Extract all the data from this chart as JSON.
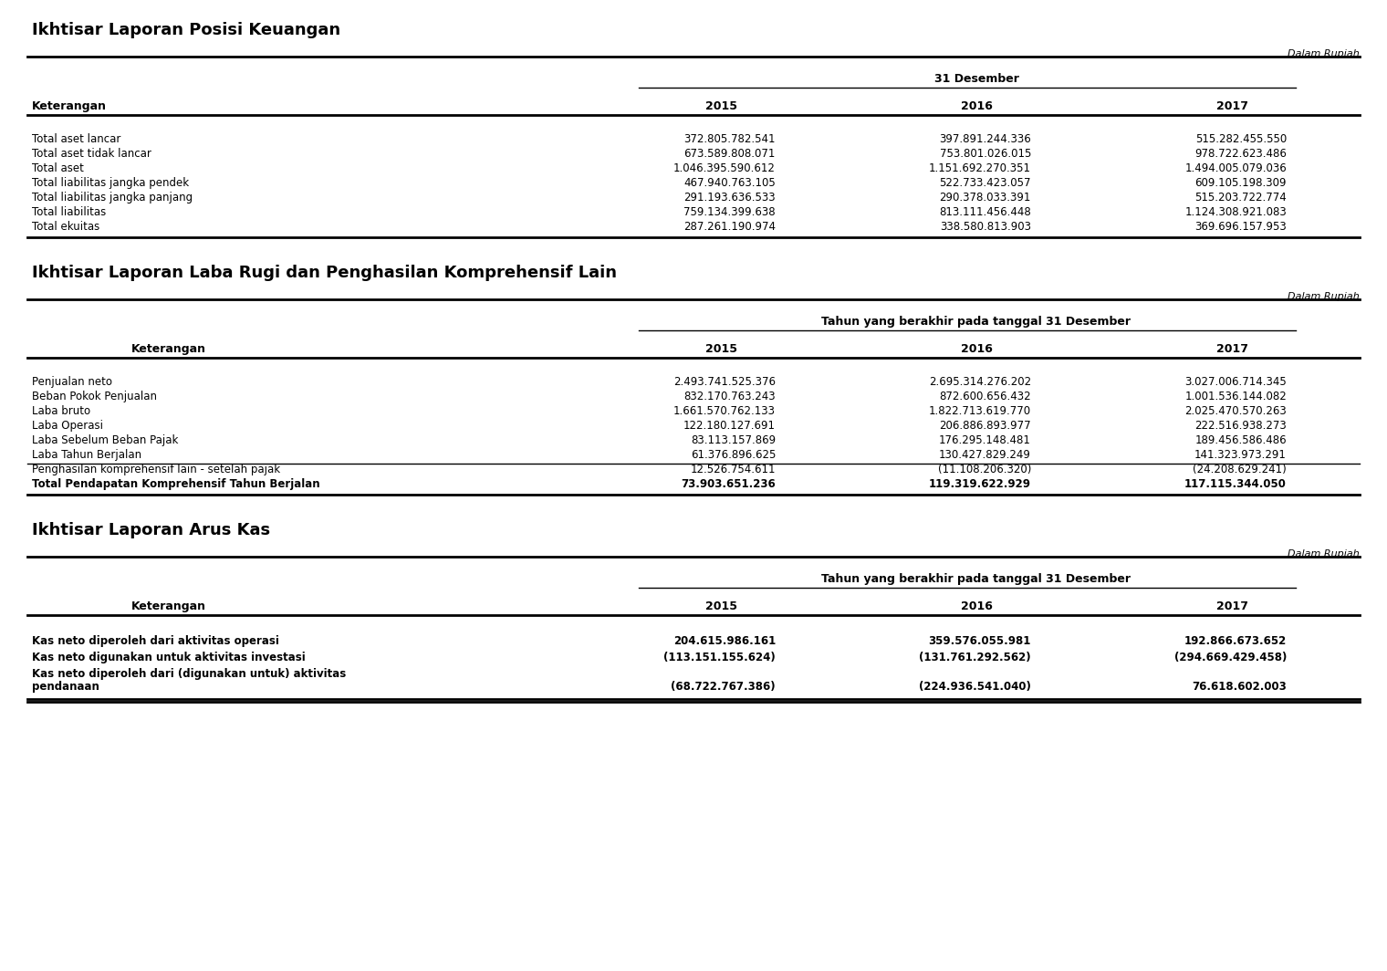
{
  "bg_color": "#ffffff",
  "title1": "Ikhtisar Laporan Posisi Keuangan",
  "title2": "Ikhtisar Laporan Laba Rugi dan Penghasilan Komprehensif Lain",
  "title3": "Ikhtisar Laporan Arus Kas",
  "dalam_rupiah": "Dalam Rupiah",
  "section1": {
    "header_main": "31 Desember",
    "col_label": "Keterangan",
    "years": [
      "2015",
      "2016",
      "2017"
    ],
    "rows": [
      [
        "Total aset lancar",
        "372.805.782.541",
        "397.891.244.336",
        "515.282.455.550"
      ],
      [
        "Total aset tidak lancar",
        "673.589.808.071",
        "753.801.026.015",
        "978.722.623.486"
      ],
      [
        "Total aset",
        "1.046.395.590.612",
        "1.151.692.270.351",
        "1.494.005.079.036"
      ],
      [
        "Total liabilitas jangka pendek",
        "467.940.763.105",
        "522.733.423.057",
        "609.105.198.309"
      ],
      [
        "Total liabilitas jangka panjang",
        "291.193.636.533",
        "290.378.033.391",
        "515.203.722.774"
      ],
      [
        "Total liabilitas",
        "759.134.399.638",
        "813.111.456.448",
        "1.124.308.921.083"
      ],
      [
        "Total ekuitas",
        "287.261.190.974",
        "338.580.813.903",
        "369.696.157.953"
      ]
    ],
    "bold_rows": []
  },
  "section2": {
    "header_main": "Tahun yang berakhir pada tanggal 31 Desember",
    "col_label": "Keterangan",
    "years": [
      "2015",
      "2016",
      "2017"
    ],
    "rows": [
      [
        "Penjualan neto",
        "2.493.741.525.376",
        "2.695.314.276.202",
        "3.027.006.714.345"
      ],
      [
        "Beban Pokok Penjualan",
        "832.170.763.243",
        "872.600.656.432",
        "1.001.536.144.082"
      ],
      [
        "Laba bruto",
        "1.661.570.762.133",
        "1.822.713.619.770",
        "2.025.470.570.263"
      ],
      [
        "Laba Operasi",
        "122.180.127.691",
        "206.886.893.977",
        "222.516.938.273"
      ],
      [
        "Laba Sebelum Beban Pajak",
        "83.113.157.869",
        "176.295.148.481",
        "189.456.586.486"
      ],
      [
        "Laba Tahun Berjalan",
        "61.376.896.625",
        "130.427.829.249",
        "141.323.973.291"
      ],
      [
        "Penghasilan komprehensif lain - setelah pajak",
        "12.526.754.611",
        "(11.108.206.320)",
        "(24.208.629.241)"
      ],
      [
        "Total Pendapatan Komprehensif Tahun Berjalan",
        "73.903.651.236",
        "119.319.622.929",
        "117.115.344.050"
      ]
    ],
    "bold_rows": [
      7
    ]
  },
  "section3": {
    "header_main": "Tahun yang berakhir pada tanggal 31 Desember",
    "col_label": "Keterangan",
    "years": [
      "2015",
      "2016",
      "2017"
    ],
    "rows": [
      [
        "Kas neto diperoleh dari aktivitas operasi",
        "204.615.986.161",
        "359.576.055.981",
        "192.866.673.652"
      ],
      [
        "Kas neto digunakan untuk aktivitas investasi",
        "(113.151.155.624)",
        "(131.761.292.562)",
        "(294.669.429.458)"
      ],
      [
        "Kas neto diperoleh dari (digunakan untuk) aktivitas\npendanaan",
        "(68.722.767.386)",
        "(224.936.541.040)",
        "76.618.602.003"
      ]
    ],
    "bold_rows": [
      0,
      1,
      2
    ]
  }
}
